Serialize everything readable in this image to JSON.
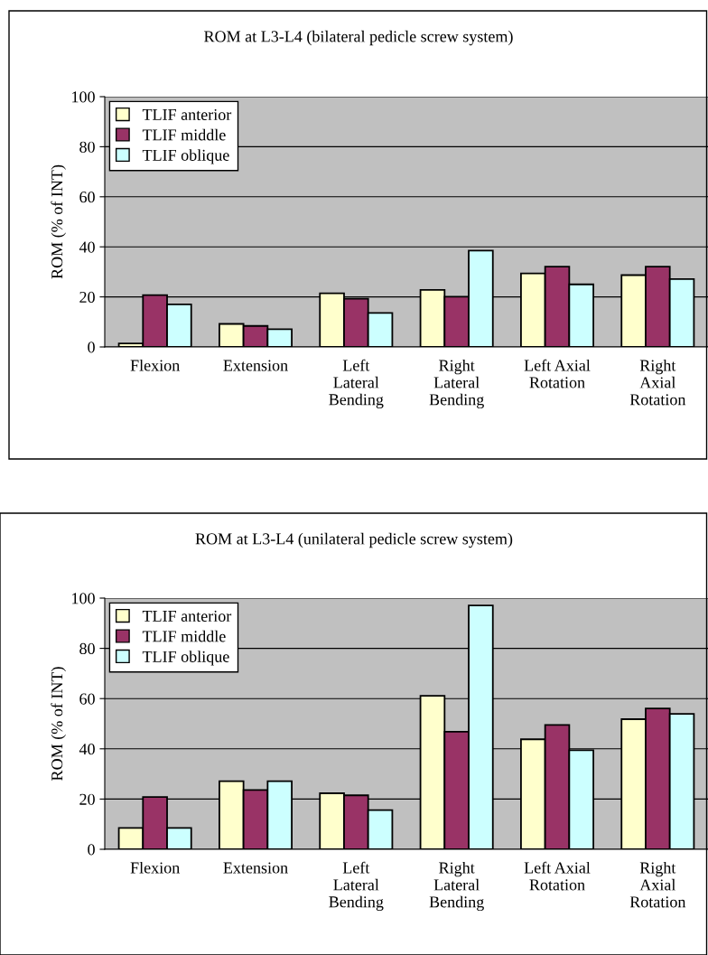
{
  "chart_data": [
    {
      "type": "bar",
      "title": "ROM at L3-L4 (bilateral pedicle screw system)",
      "ylabel": "ROM (% of INT)",
      "categories": [
        "Flexion",
        "Extension",
        "Left\nLateral\nBending",
        "Right\nLateral\nBending",
        "Left Axial\nRotation",
        "Right\nAxial\nRotation"
      ],
      "series": [
        {
          "name": "TLIF anterior",
          "color": "#ffffcc",
          "values": [
            1.4,
            9.2,
            21.4,
            22.8,
            29.4,
            28.7
          ]
        },
        {
          "name": "TLIF middle",
          "color": "#993366",
          "values": [
            20.7,
            8.4,
            19.3,
            20.1,
            32.1,
            32.1
          ]
        },
        {
          "name": "TLIF oblique",
          "color": "#ccffff",
          "values": [
            17.0,
            7.1,
            13.6,
            38.5,
            25.0,
            27.1
          ]
        }
      ],
      "ylim": [
        0,
        100
      ],
      "yticks": [
        0,
        20,
        40,
        60,
        80,
        100
      ],
      "grid": "y",
      "legend": "top left"
    },
    {
      "type": "bar",
      "title": "ROM at L3-L4 (unilateral pedicle screw system)",
      "ylabel": "ROM (% of INT)",
      "categories": [
        "Flexion",
        "Extension",
        "Left\nLateral\nBending",
        "Right\nLateral\nBending",
        "Left Axial\nRotation",
        "Right\nAxial\nRotation"
      ],
      "series": [
        {
          "name": "TLIF anterior",
          "color": "#ffffcc",
          "values": [
            8.5,
            27.1,
            22.3,
            61.1,
            43.8,
            51.8
          ]
        },
        {
          "name": "TLIF middle",
          "color": "#993366",
          "values": [
            20.8,
            23.6,
            21.5,
            46.8,
            49.5,
            56.1
          ]
        },
        {
          "name": "TLIF oblique",
          "color": "#ccffff",
          "values": [
            8.5,
            27.1,
            15.6,
            97.1,
            39.4,
            53.9
          ]
        }
      ],
      "ylim": [
        0,
        100
      ],
      "yticks": [
        0,
        20,
        40,
        60,
        80,
        100
      ],
      "grid": "y",
      "legend": "top left"
    }
  ]
}
